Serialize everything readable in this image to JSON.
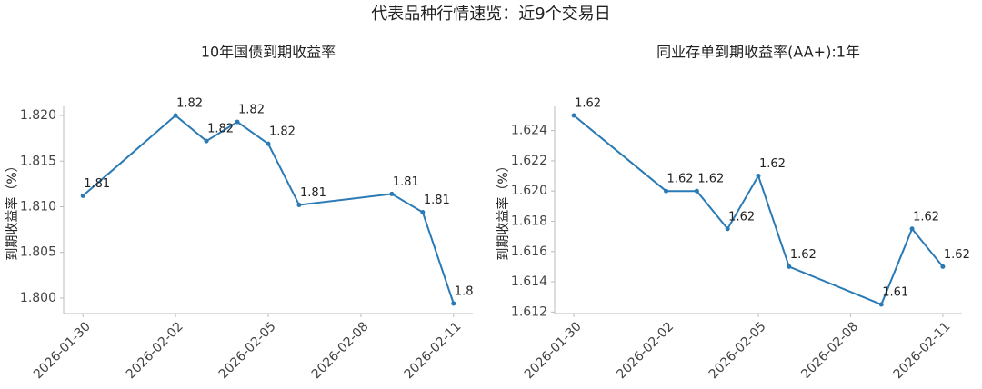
{
  "title": "代表品种行情速览：近9个交易日",
  "chart_data": [
    {
      "type": "line",
      "title": "10年国债到期收益率",
      "ylabel": "到期收益率（%）",
      "x": [
        "2026-01-30",
        "2026-02-02",
        "2026-02-03",
        "2026-02-04",
        "2026-02-05",
        "2026-02-06",
        "2026-02-09",
        "2026-02-10",
        "2026-02-11"
      ],
      "series": [
        {
          "name": "10年国债到期收益率",
          "color": "#2a7ab5",
          "values": [
            1.8112,
            1.82,
            1.8172,
            1.8193,
            1.8169,
            1.8102,
            1.8114,
            1.8094,
            1.7994
          ],
          "value_labels": [
            "1.81",
            "1.82",
            "1.82",
            "1.82",
            "1.82",
            "1.81",
            "1.81",
            "1.81",
            "1.8"
          ]
        }
      ],
      "xticks": [
        "2026-01-30",
        "2026-02-02",
        "2026-02-05",
        "2026-02-08",
        "2026-02-11"
      ],
      "ylim": [
        1.7983,
        1.821
      ],
      "yticks": [
        {
          "value": 1.8,
          "label": "1.800"
        },
        1.805,
        {
          "value": 1.81,
          "label": "1.810"
        },
        1.815,
        {
          "value": 1.82,
          "label": "1.820"
        }
      ]
    },
    {
      "type": "line",
      "title": "同业存单到期收益率(AA+):1年",
      "ylabel": "到期收益率（%）",
      "x": [
        "2026-01-30",
        "2026-02-02",
        "2026-02-03",
        "2026-02-04",
        "2026-02-05",
        "2026-02-06",
        "2026-02-09",
        "2026-02-10",
        "2026-02-11"
      ],
      "series": [
        {
          "name": "同业存单到期收益率(AA+):1年",
          "color": "#2a7ab5",
          "values": [
            1.625,
            1.62,
            1.62,
            1.6175,
            1.621,
            1.615,
            1.6125,
            1.6175,
            1.615
          ],
          "value_labels": [
            "1.62",
            "1.62",
            "1.62",
            "1.62",
            "1.62",
            "1.62",
            "1.61",
            "1.62",
            "1.62"
          ]
        }
      ],
      "xticks": [
        "2026-01-30",
        "2026-02-02",
        "2026-02-05",
        "2026-02-08",
        "2026-02-11"
      ],
      "ylim": [
        1.6119,
        1.6256
      ],
      "yticks": [
        1.612,
        1.614,
        1.616,
        1.618,
        {
          "value": 1.62,
          "label": "1.620"
        },
        1.622,
        1.624
      ]
    }
  ]
}
